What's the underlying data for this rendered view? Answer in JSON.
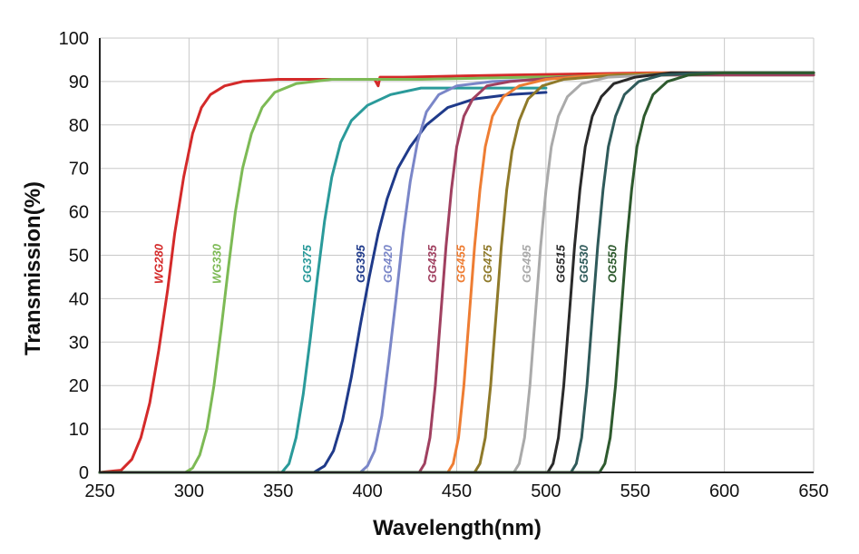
{
  "chart_data": {
    "type": "line",
    "title": "",
    "xlabel": "Wavelength(nm)",
    "ylabel": "Transmission(%)",
    "xlim": [
      250,
      650
    ],
    "ylim": [
      0,
      100
    ],
    "xticks": [
      250,
      300,
      350,
      400,
      450,
      500,
      550,
      600,
      650
    ],
    "yticks": [
      0,
      10,
      20,
      30,
      40,
      50,
      60,
      70,
      80,
      90,
      100
    ],
    "grid": true,
    "legend": "none (inline labels)",
    "series": [
      {
        "name": "WG280",
        "color": "#d42a2a",
        "points": [
          [
            250,
            0
          ],
          [
            262,
            0.5
          ],
          [
            268,
            3
          ],
          [
            273,
            8
          ],
          [
            278,
            16
          ],
          [
            283,
            28
          ],
          [
            288,
            42
          ],
          [
            292,
            55
          ],
          [
            297,
            68
          ],
          [
            302,
            78
          ],
          [
            307,
            84
          ],
          [
            312,
            87
          ],
          [
            320,
            89
          ],
          [
            330,
            90
          ],
          [
            350,
            90.5
          ],
          [
            380,
            90.5
          ],
          [
            404,
            90.5
          ],
          [
            406,
            89
          ],
          [
            407,
            91
          ],
          [
            420,
            91
          ],
          [
            480,
            91.5
          ],
          [
            560,
            92
          ],
          [
            650,
            92
          ]
        ]
      },
      {
        "name": "WG330",
        "color": "#7dba55",
        "points": [
          [
            250,
            0
          ],
          [
            298,
            0
          ],
          [
            302,
            1
          ],
          [
            306,
            4
          ],
          [
            310,
            10
          ],
          [
            314,
            20
          ],
          [
            318,
            33
          ],
          [
            322,
            47
          ],
          [
            326,
            60
          ],
          [
            330,
            70
          ],
          [
            335,
            78
          ],
          [
            341,
            84
          ],
          [
            348,
            87.5
          ],
          [
            360,
            89.5
          ],
          [
            380,
            90.5
          ],
          [
            430,
            90.5
          ],
          [
            490,
            91
          ],
          [
            570,
            91.5
          ],
          [
            650,
            91.5
          ]
        ]
      },
      {
        "name": "GG375",
        "color": "#2a9a9a",
        "points": [
          [
            250,
            0
          ],
          [
            352,
            0
          ],
          [
            356,
            2
          ],
          [
            360,
            8
          ],
          [
            364,
            18
          ],
          [
            368,
            31
          ],
          [
            372,
            45
          ],
          [
            376,
            58
          ],
          [
            380,
            68
          ],
          [
            385,
            76
          ],
          [
            391,
            81
          ],
          [
            400,
            84.5
          ],
          [
            413,
            87
          ],
          [
            430,
            88.5
          ],
          [
            460,
            88.5
          ],
          [
            480,
            88.5
          ],
          [
            500,
            88.5
          ]
        ]
      },
      {
        "name": "GG395",
        "color": "#1f3a8a",
        "points": [
          [
            250,
            0
          ],
          [
            370,
            0
          ],
          [
            376,
            1.5
          ],
          [
            381,
            5
          ],
          [
            386,
            12
          ],
          [
            391,
            22
          ],
          [
            396,
            34
          ],
          [
            401,
            45
          ],
          [
            406,
            55
          ],
          [
            411,
            63
          ],
          [
            417,
            70
          ],
          [
            424,
            75
          ],
          [
            433,
            80
          ],
          [
            445,
            84
          ],
          [
            460,
            86
          ],
          [
            480,
            87
          ],
          [
            500,
            87.5
          ]
        ]
      },
      {
        "name": "GG420",
        "color": "#7a86c8",
        "points": [
          [
            250,
            0
          ],
          [
            396,
            0
          ],
          [
            400,
            1.5
          ],
          [
            404,
            5
          ],
          [
            408,
            13
          ],
          [
            412,
            26
          ],
          [
            416,
            40
          ],
          [
            420,
            55
          ],
          [
            424,
            67
          ],
          [
            428,
            76
          ],
          [
            433,
            83
          ],
          [
            440,
            87
          ],
          [
            450,
            89
          ],
          [
            470,
            90
          ],
          [
            500,
            90.5
          ]
        ]
      },
      {
        "name": "GG435",
        "color": "#a04060",
        "points": [
          [
            250,
            0
          ],
          [
            429,
            0
          ],
          [
            432,
            2
          ],
          [
            435,
            8
          ],
          [
            438,
            20
          ],
          [
            441,
            36
          ],
          [
            444,
            52
          ],
          [
            447,
            65
          ],
          [
            450,
            75
          ],
          [
            454,
            82
          ],
          [
            459,
            86
          ],
          [
            467,
            89
          ],
          [
            480,
            90
          ],
          [
            510,
            91
          ],
          [
            560,
            91.5
          ],
          [
            650,
            91.5
          ]
        ]
      },
      {
        "name": "GG455",
        "color": "#ee7d33",
        "points": [
          [
            250,
            0
          ],
          [
            445,
            0
          ],
          [
            448,
            2
          ],
          [
            451,
            8
          ],
          [
            454,
            20
          ],
          [
            457,
            36
          ],
          [
            460,
            52
          ],
          [
            463,
            65
          ],
          [
            466,
            75
          ],
          [
            470,
            82
          ],
          [
            476,
            86.5
          ],
          [
            485,
            89
          ],
          [
            500,
            90.5
          ],
          [
            530,
            91.5
          ],
          [
            570,
            92
          ],
          [
            650,
            92
          ]
        ]
      },
      {
        "name": "GG475",
        "color": "#8f7a2a",
        "points": [
          [
            250,
            0
          ],
          [
            460,
            0
          ],
          [
            463,
            2
          ],
          [
            466,
            8
          ],
          [
            469,
            20
          ],
          [
            472,
            36
          ],
          [
            475,
            52
          ],
          [
            478,
            65
          ],
          [
            481,
            74
          ],
          [
            485,
            81
          ],
          [
            490,
            86
          ],
          [
            498,
            89
          ],
          [
            510,
            90.5
          ],
          [
            540,
            91.5
          ],
          [
            600,
            92
          ],
          [
            650,
            92
          ]
        ]
      },
      {
        "name": "GG495",
        "color": "#aaaaaa",
        "points": [
          [
            250,
            0
          ],
          [
            482,
            0
          ],
          [
            485,
            2
          ],
          [
            488,
            8
          ],
          [
            491,
            20
          ],
          [
            494,
            36
          ],
          [
            497,
            52
          ],
          [
            500,
            65
          ],
          [
            503,
            75
          ],
          [
            507,
            82
          ],
          [
            512,
            86.5
          ],
          [
            520,
            89.5
          ],
          [
            535,
            91
          ],
          [
            560,
            91.5
          ],
          [
            600,
            92
          ],
          [
            650,
            92
          ]
        ]
      },
      {
        "name": "GG515",
        "color": "#2a2a2a",
        "points": [
          [
            250,
            0
          ],
          [
            501,
            0
          ],
          [
            504,
            2
          ],
          [
            507,
            8
          ],
          [
            510,
            20
          ],
          [
            513,
            36
          ],
          [
            516,
            52
          ],
          [
            519,
            65
          ],
          [
            522,
            75
          ],
          [
            526,
            82
          ],
          [
            531,
            86.5
          ],
          [
            538,
            89.5
          ],
          [
            550,
            91
          ],
          [
            570,
            92
          ],
          [
            650,
            92
          ]
        ]
      },
      {
        "name": "GG530",
        "color": "#2f5a5a",
        "points": [
          [
            250,
            0
          ],
          [
            514,
            0
          ],
          [
            517,
            2
          ],
          [
            520,
            8
          ],
          [
            523,
            20
          ],
          [
            526,
            36
          ],
          [
            529,
            52
          ],
          [
            532,
            65
          ],
          [
            535,
            75
          ],
          [
            539,
            82
          ],
          [
            544,
            87
          ],
          [
            552,
            90
          ],
          [
            565,
            91.5
          ],
          [
            590,
            92
          ],
          [
            650,
            92
          ]
        ]
      },
      {
        "name": "OG550",
        "color": "#2e5a2e",
        "points": [
          [
            250,
            0
          ],
          [
            530,
            0
          ],
          [
            533,
            2
          ],
          [
            536,
            8
          ],
          [
            539,
            20
          ],
          [
            542,
            36
          ],
          [
            545,
            52
          ],
          [
            548,
            65
          ],
          [
            551,
            75
          ],
          [
            555,
            82
          ],
          [
            560,
            87
          ],
          [
            568,
            90
          ],
          [
            580,
            91.5
          ],
          [
            600,
            92
          ],
          [
            650,
            92
          ]
        ]
      }
    ]
  }
}
